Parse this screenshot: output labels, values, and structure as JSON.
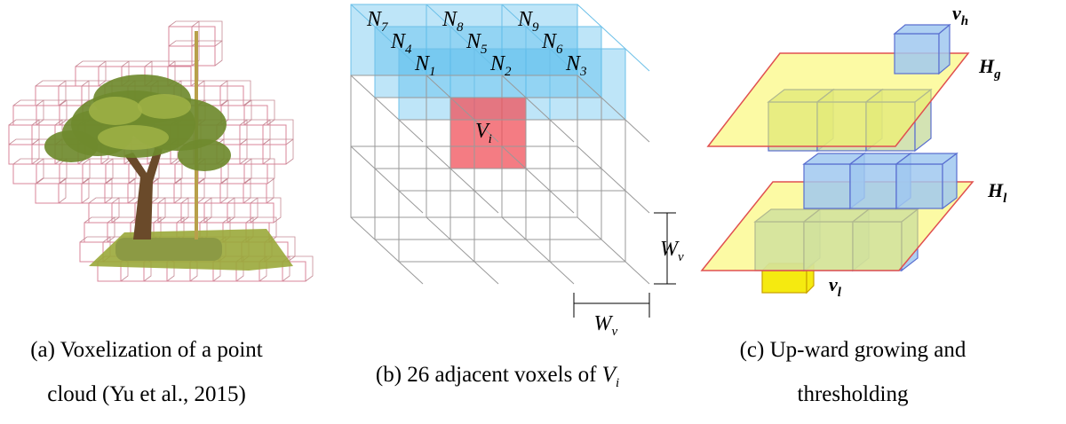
{
  "panel_a": {
    "caption": [
      "(a) Voxelization of a point",
      "cloud (Yu et al., 2015)"
    ]
  },
  "panel_b": {
    "neighbors": [
      {
        "symbol": "N",
        "subscript": "7"
      },
      {
        "symbol": "N",
        "subscript": "8"
      },
      {
        "symbol": "N",
        "subscript": "9"
      },
      {
        "symbol": "N",
        "subscript": "4"
      },
      {
        "symbol": "N",
        "subscript": "5"
      },
      {
        "symbol": "N",
        "subscript": "6"
      },
      {
        "symbol": "N",
        "subscript": "1"
      },
      {
        "symbol": "N",
        "subscript": "2"
      },
      {
        "symbol": "N",
        "subscript": "3"
      }
    ],
    "center": {
      "symbol": "V",
      "subscript": "i"
    },
    "dimensions": [
      {
        "symbol": "W",
        "subscript": "v"
      },
      {
        "symbol": "W",
        "subscript": "v"
      }
    ],
    "caption": {
      "text": "(b) 26 adjacent voxels of ",
      "symbol": "V",
      "subscript": "i"
    }
  },
  "panel_c": {
    "labels": [
      {
        "symbol": "v",
        "subscript": "h"
      },
      {
        "symbol": "H",
        "subscript": "g"
      },
      {
        "symbol": "H",
        "subscript": "l"
      },
      {
        "symbol": "v",
        "subscript": "l"
      }
    ],
    "caption": [
      "(c) Up-ward growing and",
      "thresholding"
    ]
  }
}
